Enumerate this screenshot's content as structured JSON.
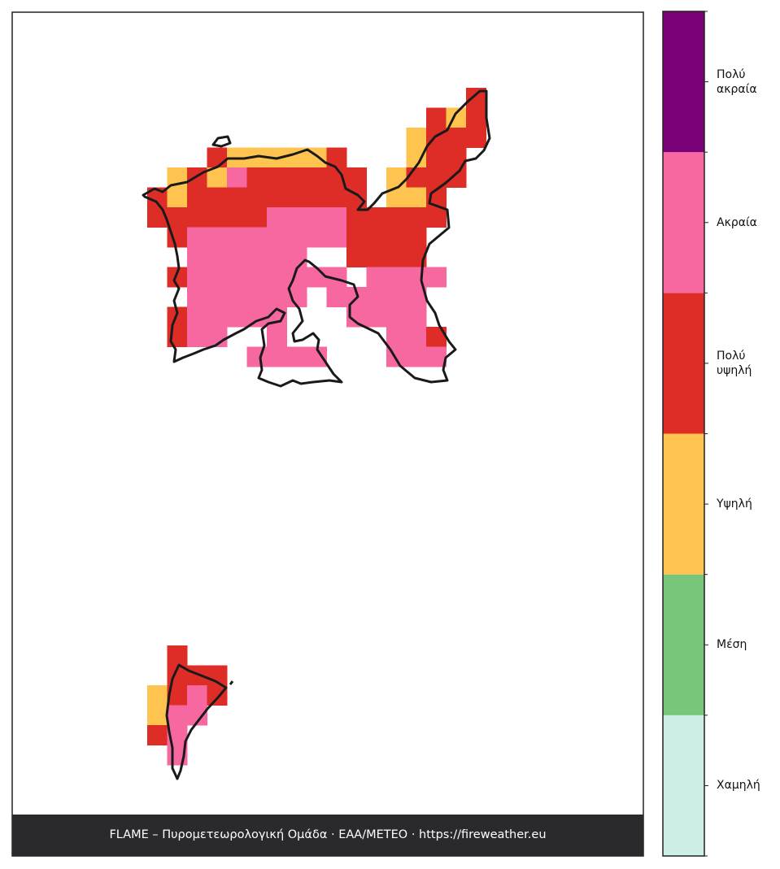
{
  "footer": "FLAME – Πυρομετεωρολογική Ομάδα · ΕΑΑ/METEO · https://fireweather.eu",
  "colorbar": {
    "levels": [
      {
        "label": "Χαμηλή",
        "color": "#cdeee4"
      },
      {
        "label": "Μέση",
        "color": "#78c679"
      },
      {
        "label": "Υψηλή",
        "color": "#fec44f"
      },
      {
        "label": "Πολύ υψηλή",
        "color": "#de2d26"
      },
      {
        "label": "Ακραία",
        "color": "#f768a1"
      },
      {
        "label": "Πολύ ακραία",
        "color": "#7a0177"
      }
    ]
  }
}
